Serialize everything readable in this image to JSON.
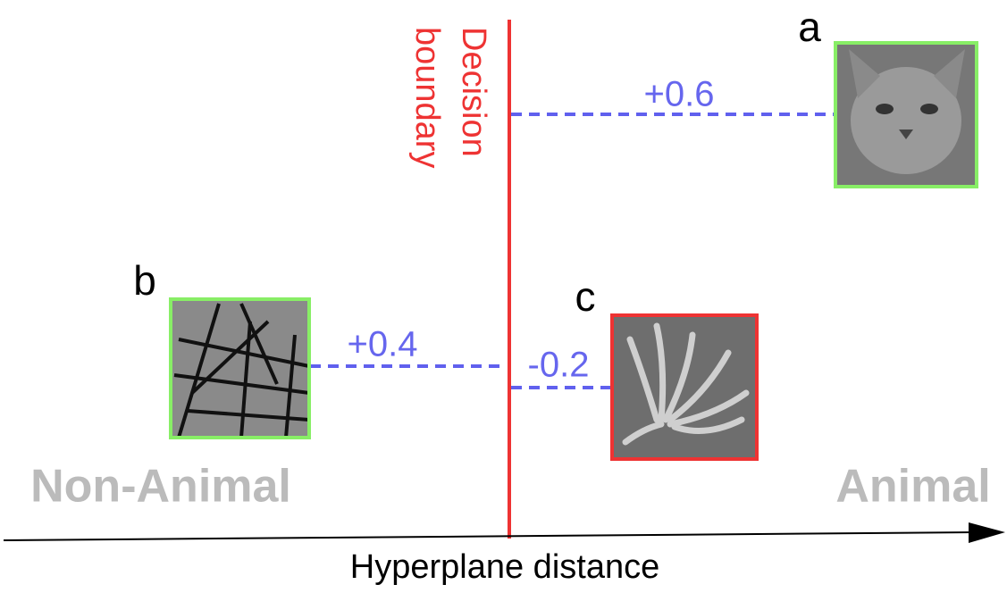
{
  "boundary_label": [
    "Decision",
    "boundary"
  ],
  "items": [
    {
      "label": "a",
      "distance": "+0.6"
    },
    {
      "label": "b",
      "distance": "+0.4"
    },
    {
      "label": "c",
      "distance": "-0.2"
    }
  ],
  "regions": {
    "left": "Non-Animal",
    "right": "Animal"
  },
  "axis_label": "Hyperplane distance"
}
